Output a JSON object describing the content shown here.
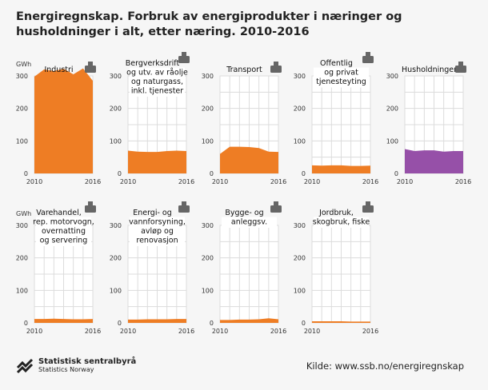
{
  "title": "Energiregnskap. Forbruk av energiprodukter i næringer og husholdninger i alt, etter næring. 2010-2016",
  "source": "Kilde: www.ssb.no/energiregnskap",
  "logo": {
    "name": "Statistisk sentralbyrå",
    "sub": "Statistics Norway"
  },
  "colors": {
    "orange": "#ee7d24",
    "purple": "#9650a8",
    "grid": "#dcdcdc",
    "icon": "#666666"
  },
  "chart_data": {
    "type": "area",
    "layout": "small-multiples",
    "unit_label": "GWh",
    "x": [
      2010,
      2011,
      2012,
      2013,
      2014,
      2015,
      2016
    ],
    "x_tick_labels": [
      "2010",
      "2016"
    ],
    "ylim": [
      0,
      300
    ],
    "y_ticks": [
      0,
      100,
      200,
      300
    ],
    "grid": true,
    "series": [
      {
        "name": "Industri",
        "icon": "factory-icon",
        "color": "#ee7d24",
        "values": [
          298,
          320,
          315,
          322,
          305,
          323,
          285
        ]
      },
      {
        "name": "Bergverksdrift og utv. av råolje og naturgass, inkl. tjenester",
        "lines": [
          "Bergverksdrift",
          "og utv. av råolje",
          "og naturgass,",
          "inkl. tjenester"
        ],
        "icon": "oil-rig-icon",
        "color": "#ee7d24",
        "values": [
          70,
          67,
          66,
          66,
          69,
          70,
          69
        ]
      },
      {
        "name": "Transport",
        "icon": "vehicles-icon",
        "color": "#ee7d24",
        "values": [
          60,
          82,
          82,
          81,
          78,
          67,
          66
        ]
      },
      {
        "name": "Offentlig og privat tjenesteyting",
        "lines": [
          "Offentlig",
          "og privat",
          "tjenesteyting"
        ],
        "icon": "building-icon",
        "color": "#ee7d24",
        "values": [
          25,
          24,
          25,
          25,
          23,
          23,
          24
        ]
      },
      {
        "name": "Husholdninger",
        "icon": "house-icon",
        "color": "#9650a8",
        "values": [
          75,
          69,
          71,
          71,
          67,
          69,
          69
        ]
      },
      {
        "name": "Varehandel, rep. motorvogn, overnatting og servering",
        "lines": [
          "Varehandel,",
          "rep. motorvogn,",
          "overnatting",
          "og servering"
        ],
        "icon": "shopping-cart-icon",
        "color": "#ee7d24",
        "values": [
          12,
          12,
          13,
          12,
          11,
          11,
          12
        ]
      },
      {
        "name": "Energi- og vannforsyning, avløp og renovasjon",
        "lines": [
          "Energi- og",
          "vannforsyning,",
          "avløp og",
          "renovasjon"
        ],
        "icon": "power-pylon-icon",
        "color": "#ee7d24",
        "values": [
          10,
          10,
          11,
          11,
          11,
          12,
          12
        ]
      },
      {
        "name": "Bygge- og anleggsv.",
        "lines": [
          "Bygge- og",
          "anleggsv."
        ],
        "icon": "crane-icon",
        "color": "#ee7d24",
        "values": [
          9,
          9,
          10,
          10,
          11,
          14,
          11
        ]
      },
      {
        "name": "Jordbruk, skogbruk, fiske",
        "lines": [
          "Jordbruk,",
          "skogbruk, fiske"
        ],
        "icon": "tractor-icon",
        "color": "#ee7d24",
        "values": [
          5,
          5,
          5,
          5,
          4,
          4,
          4
        ]
      }
    ]
  }
}
